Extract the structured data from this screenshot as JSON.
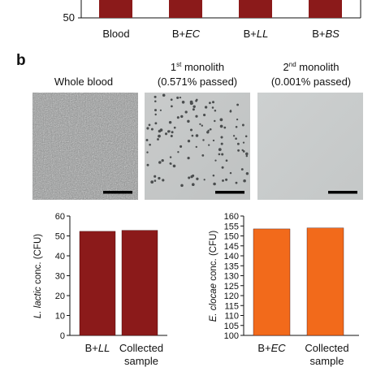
{
  "panel_a": {
    "ytick": "50",
    "categories": [
      {
        "prefix": "Blood",
        "italic": ""
      },
      {
        "prefix": "B+",
        "italic": "EC"
      },
      {
        "prefix": "B+",
        "italic": "LL"
      },
      {
        "prefix": "B+",
        "italic": "BS"
      }
    ]
  },
  "panel_b": {
    "label": "b",
    "images": [
      {
        "line1": "Whole blood",
        "line2": ""
      },
      {
        "num": "1",
        "sup": "st",
        "rest": " monolith",
        "line2": "(0.571% passed)"
      },
      {
        "num": "2",
        "sup": "nd",
        "rest": " monolith",
        "line2": "(0.001% passed)"
      }
    ]
  },
  "colors": {
    "dark_red": "#8b1a1a",
    "orange": "#f26a1b"
  },
  "chart_data": [
    {
      "type": "bar",
      "categories": [
        "B+LL",
        "Collected sample"
      ],
      "values": [
        52.3,
        52.8
      ],
      "ylabel": "L. lactic conc. (CFU)",
      "ylim": [
        0,
        60
      ],
      "yticks": [
        0,
        10,
        20,
        30,
        40,
        50,
        60
      ],
      "grid": false,
      "color": "#8b1a1a"
    },
    {
      "type": "bar",
      "categories": [
        "B+EC",
        "Collected sample"
      ],
      "values": [
        153.5,
        154
      ],
      "ylabel": "E. clocae conc. (CFU)",
      "ylim": [
        100,
        160
      ],
      "yticks": [
        100,
        105,
        110,
        115,
        120,
        125,
        130,
        135,
        140,
        145,
        150,
        155,
        160
      ],
      "grid": false,
      "color": "#f26a1b"
    }
  ]
}
